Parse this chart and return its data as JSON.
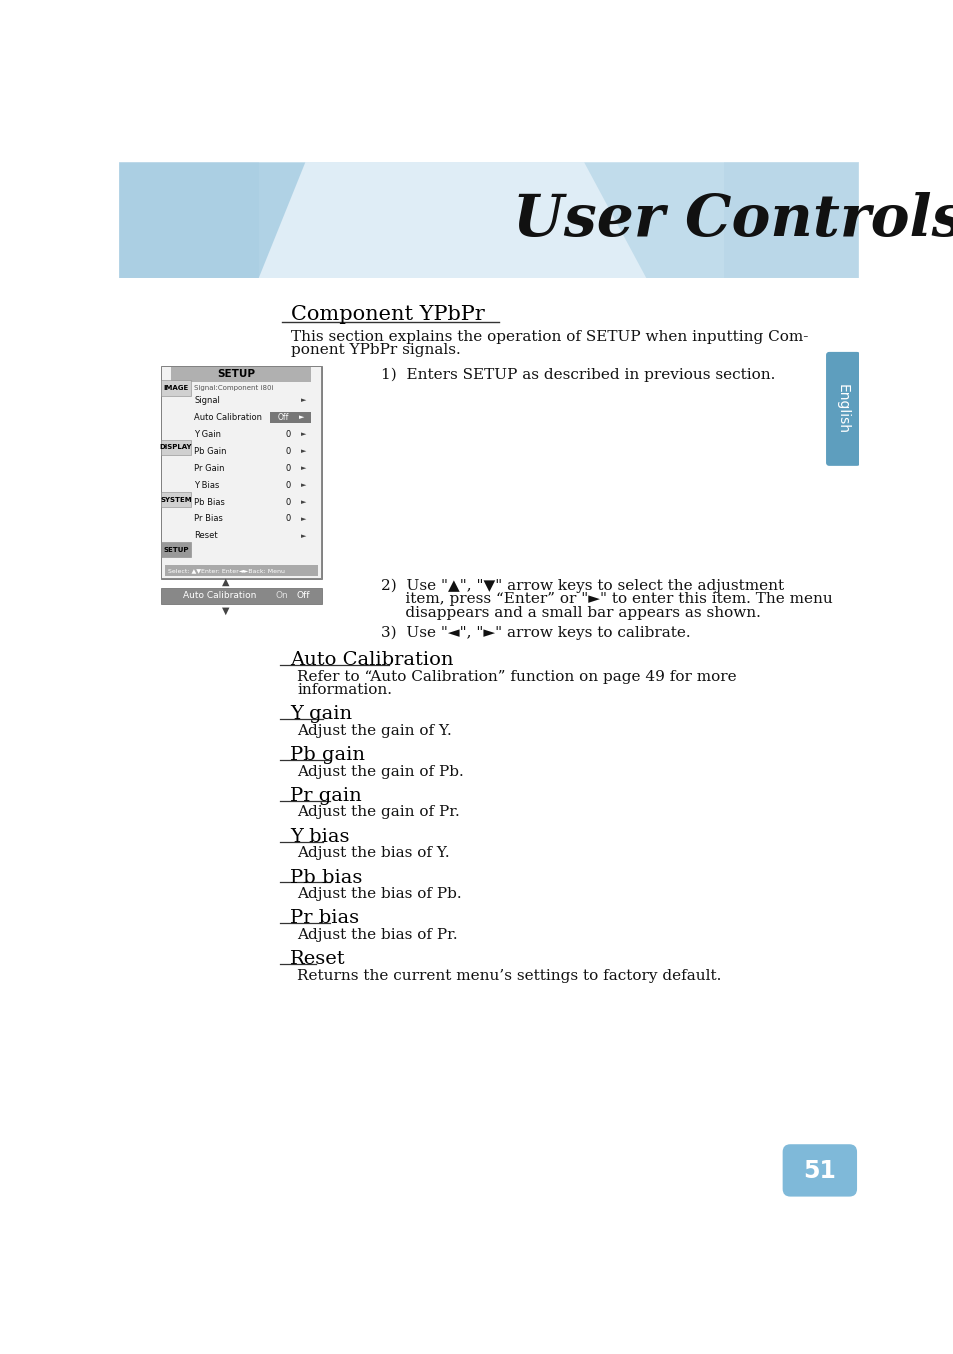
{
  "page_bg": "#ffffff",
  "title_text": "User Controls",
  "page_number": "51",
  "section_title": "Component YPbPr",
  "section_intro_line1": "This section explains the operation of SETUP when inputting Com-",
  "section_intro_line2": "ponent YPbPr signals.",
  "step1": "1)  Enters SETUP as described in previous section.",
  "step2_line1": "2)  Use \"▲\", \"▼\" arrow keys to select the adjustment",
  "step2_line2": "     item, press “Enter” or \"►\" to enter this item. The menu",
  "step2_line3": "     disappears and a small bar appears as shown.",
  "step3": "3)  Use \"◄\", \"►\" arrow keys to calibrate.",
  "subsections": [
    {
      "title": "Auto Calibration",
      "body": "Refer to “Auto Calibration” function on page 49 for more\ninformation.",
      "body_lines": 2
    },
    {
      "title": "Y gain",
      "body": "Adjust the gain of Y.",
      "body_lines": 1
    },
    {
      "title": "Pb gain",
      "body": "Adjust the gain of Pb.",
      "body_lines": 1
    },
    {
      "title": "Pr gain",
      "body": "Adjust the gain of Pr.",
      "body_lines": 1
    },
    {
      "title": "Y bias",
      "body": "Adjust the bias of Y.",
      "body_lines": 1
    },
    {
      "title": "Pb bias",
      "body": "Adjust the bias of Pb.",
      "body_lines": 1
    },
    {
      "title": "Pr bias",
      "body": "Adjust the bias of Pr.",
      "body_lines": 1
    },
    {
      "title": "Reset",
      "body": "Returns the current menu’s settings to factory default.",
      "body_lines": 1
    }
  ],
  "menu_items": [
    "Signal:Component i80i",
    "Signal",
    "Auto Calibration",
    "Y Gain",
    "Pb Gain",
    "Pr Gain",
    "Y Bias",
    "Pb Bias",
    "Pr Bias",
    "Reset"
  ],
  "menu_values": [
    "",
    "",
    "Off",
    "0",
    "0",
    "0",
    "0",
    "0",
    "0",
    ""
  ],
  "left_tabs": [
    "IMAGE",
    "DISPLAY",
    "SYSTEM",
    "SETUP"
  ],
  "header_left_color": "#a8cde0",
  "header_center_color": "#ddeef7",
  "english_tab_color": "#5599bb"
}
